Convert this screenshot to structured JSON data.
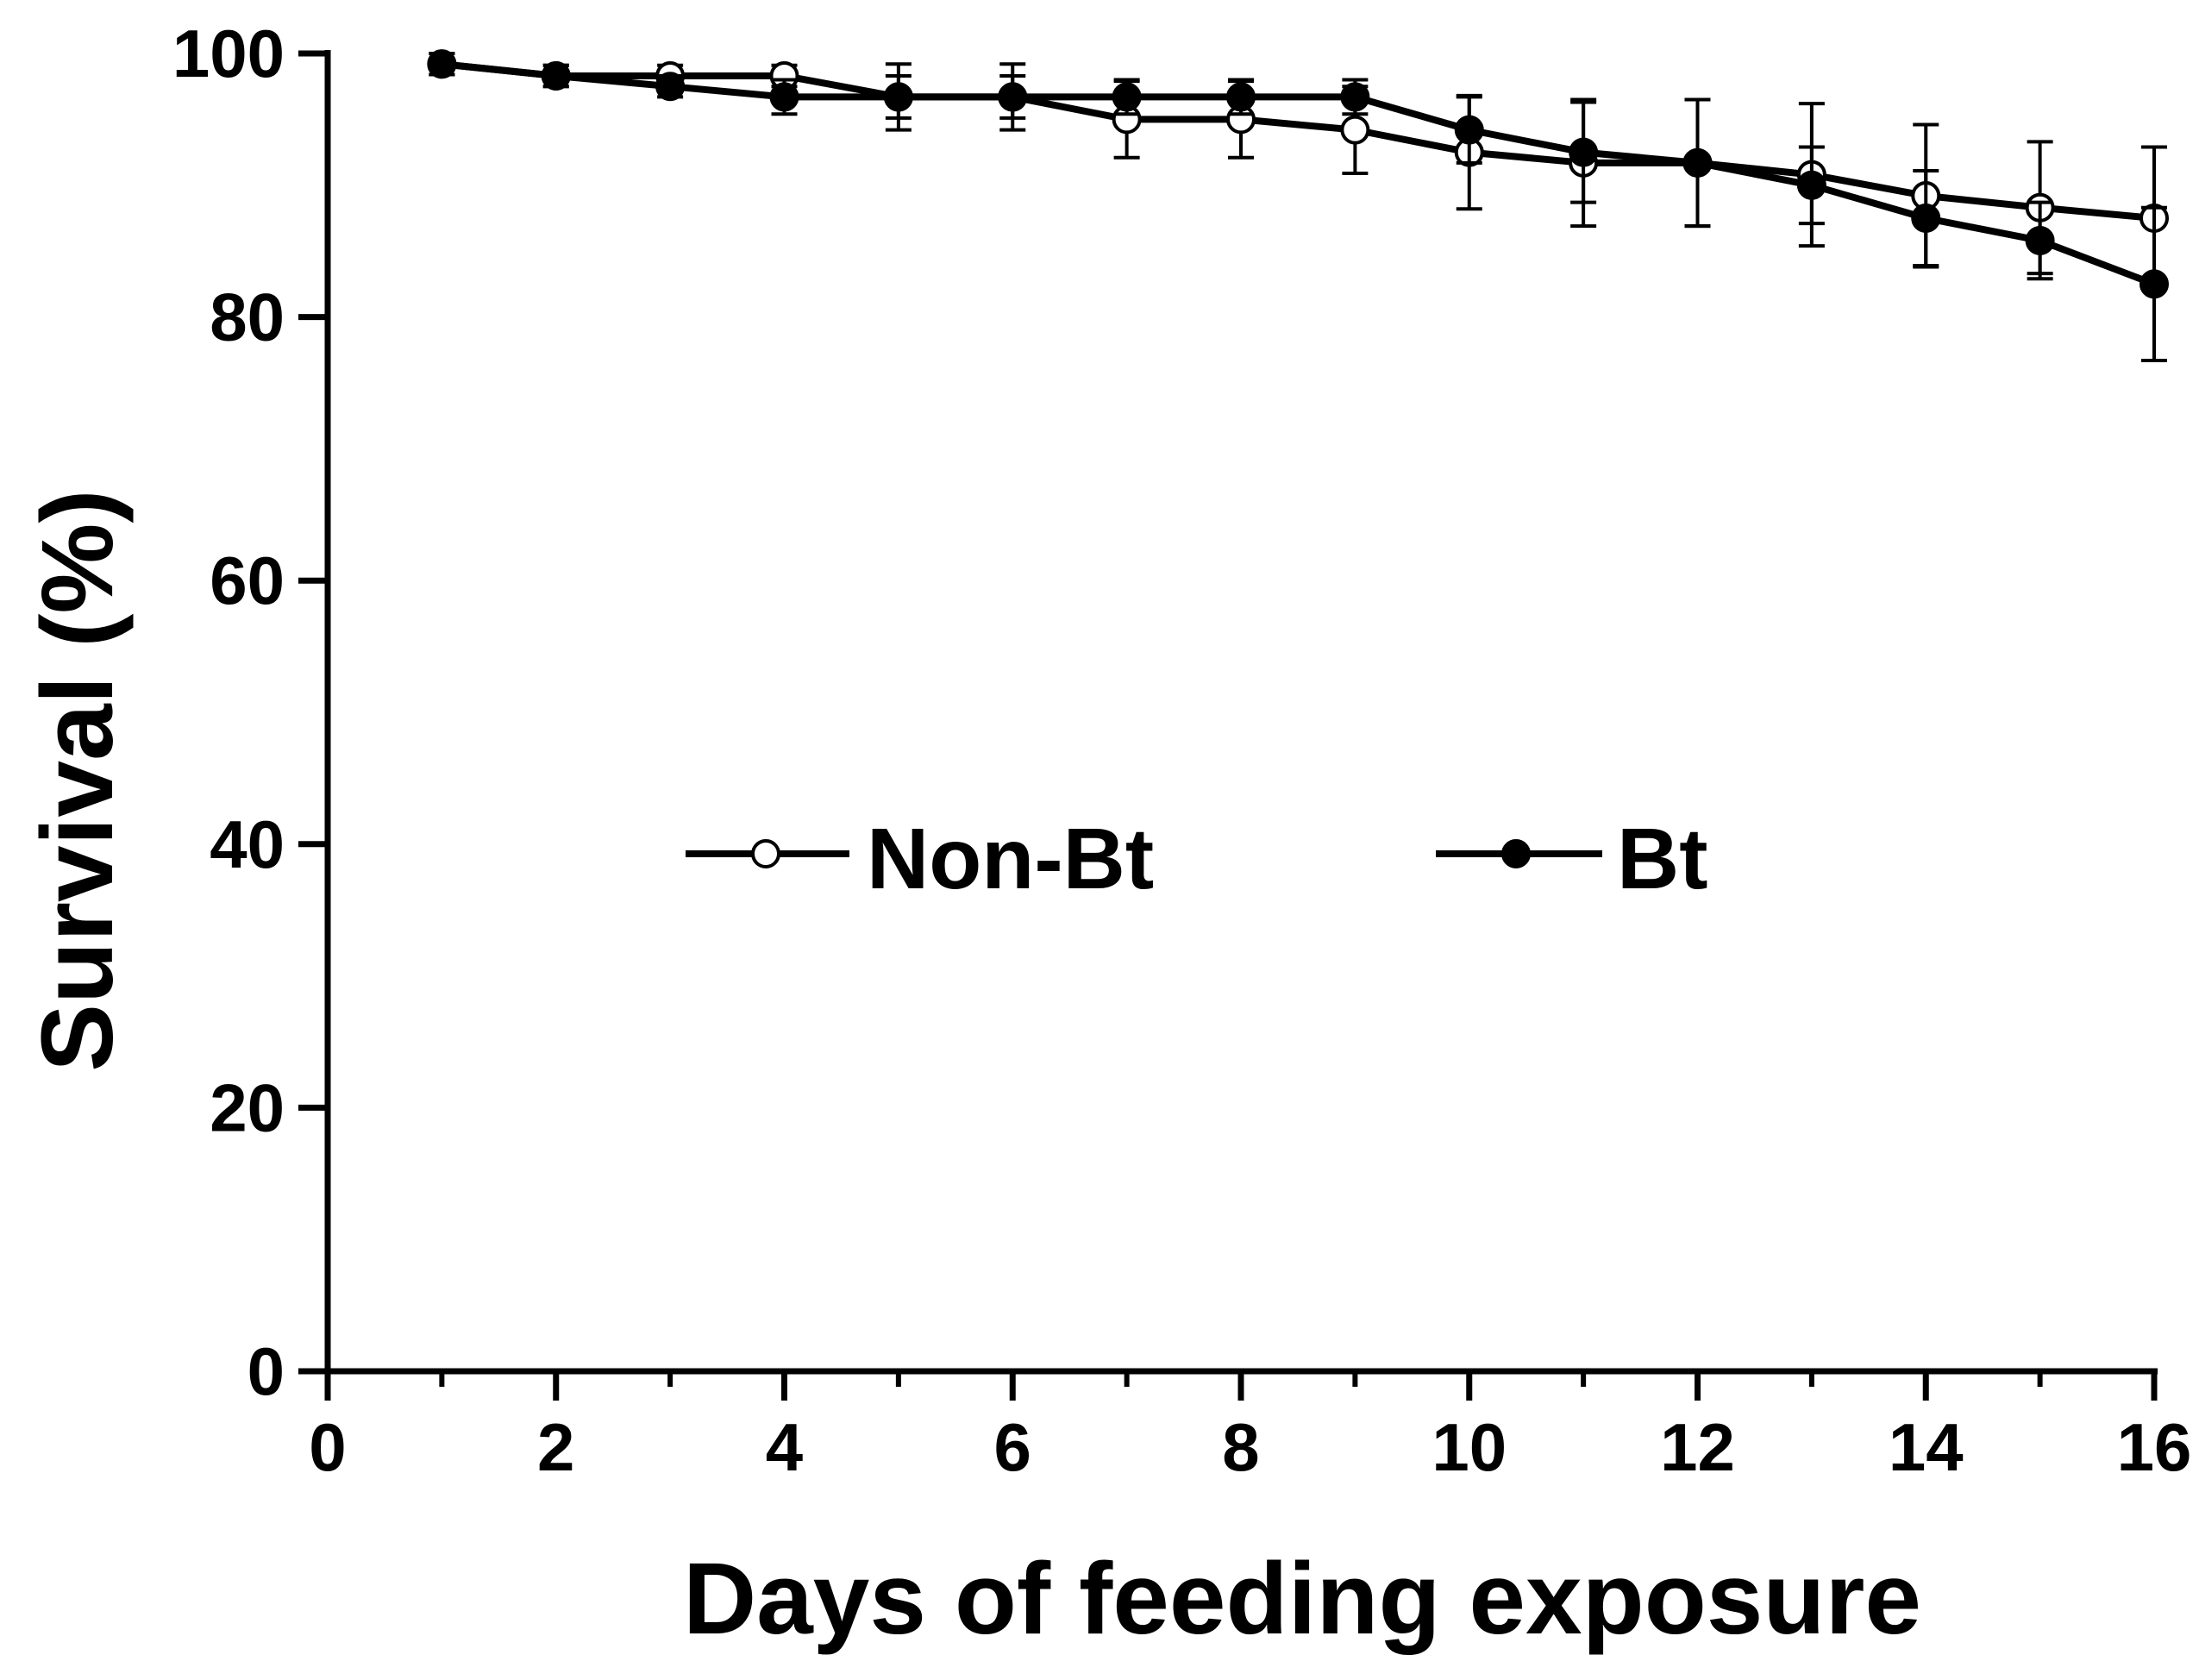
{
  "chart_data": {
    "type": "line",
    "title": "",
    "xlabel": "Days of feeding exposure",
    "ylabel": "Survival (%)",
    "xlim": [
      0,
      16
    ],
    "ylim": [
      0,
      100
    ],
    "x_ticks": [
      0,
      2,
      4,
      6,
      8,
      10,
      12,
      14,
      16
    ],
    "x_minor_ticks": [
      1,
      3,
      5,
      7,
      9,
      11,
      13,
      15
    ],
    "y_ticks": [
      0,
      20,
      40,
      60,
      80,
      100
    ],
    "grid": false,
    "legend_placement": "center",
    "x": [
      1,
      2,
      3,
      4,
      5,
      6,
      7,
      8,
      9,
      10,
      11,
      12,
      13,
      14,
      15,
      16
    ],
    "series": [
      {
        "name": "Non-Bt",
        "marker": "open-circle",
        "values": [
          99.2,
          98.3,
          98.3,
          98.3,
          96.7,
          96.7,
          95.0,
          95.0,
          94.2,
          92.5,
          91.7,
          91.7,
          90.8,
          89.2,
          88.3,
          87.5
        ],
        "errors": [
          0.8,
          0.8,
          0.8,
          0.8,
          1.6,
          1.6,
          2.9,
          2.9,
          3.3,
          4.3,
          4.8,
          4.8,
          5.4,
          5.4,
          5.0,
          5.4
        ]
      },
      {
        "name": "Bt",
        "marker": "filled-circle",
        "values": [
          99.2,
          98.3,
          97.5,
          96.7,
          96.7,
          96.7,
          96.7,
          96.7,
          96.7,
          94.2,
          92.5,
          91.7,
          90.0,
          87.5,
          85.8,
          82.5
        ],
        "errors": [
          0.8,
          0.8,
          0.8,
          1.3,
          2.5,
          2.5,
          1.3,
          1.3,
          1.3,
          2.5,
          3.8,
          4.8,
          2.9,
          3.6,
          2.9,
          5.8
        ]
      }
    ]
  }
}
